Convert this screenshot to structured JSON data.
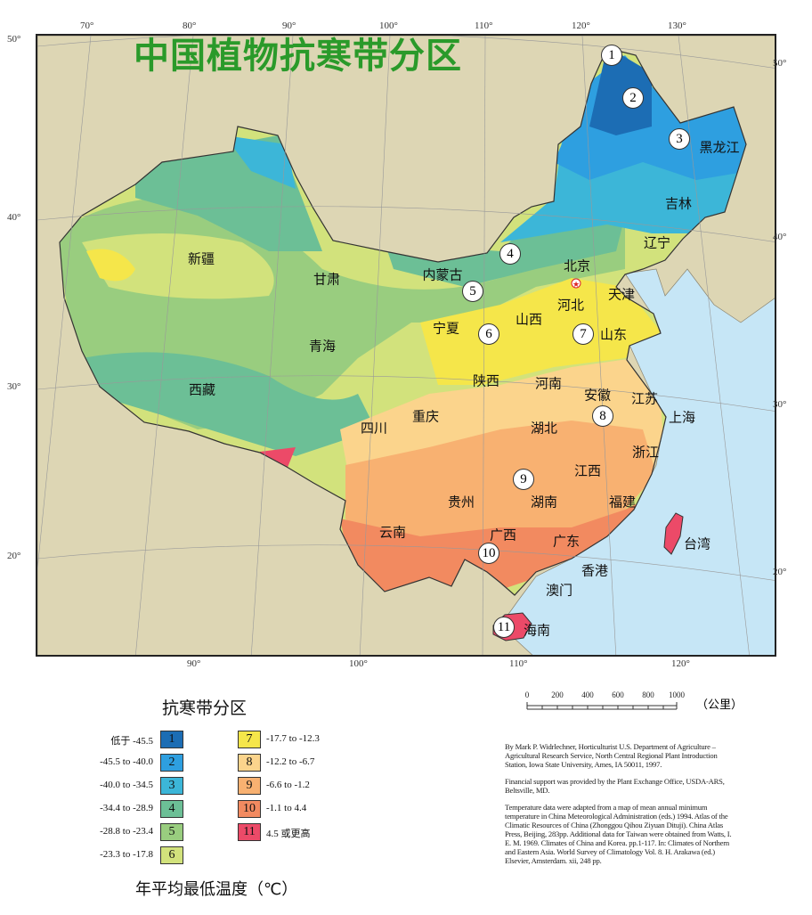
{
  "title": "中国植物抗寒带分区",
  "colors": {
    "land_outside": "#ddd6b4",
    "sea": "#c6e6f6",
    "title": "#2a9a2a",
    "zones": [
      "#1c6db4",
      "#2e9fe0",
      "#3cb6d8",
      "#6cbf96",
      "#99cd7f",
      "#d2e27c",
      "#f5e64a",
      "#fbd48c",
      "#f8b171",
      "#f28a60",
      "#ec4a68"
    ]
  },
  "axis_labels": {
    "top": [
      "70°",
      "80°",
      "90°",
      "100°",
      "110°",
      "120°",
      "130°"
    ],
    "left": [
      "50°",
      "40°",
      "30°",
      "20°"
    ],
    "right": [
      "50°",
      "40°",
      "30°",
      "20°"
    ],
    "bottom": [
      "90°",
      "100°",
      "110°",
      "120°"
    ]
  },
  "provinces": [
    "新疆",
    "甘肃",
    "内蒙古",
    "北京",
    "天津",
    "辽宁",
    "吉林",
    "黑龙江",
    "河北",
    "山西",
    "宁夏",
    "青海",
    "山东",
    "西藏",
    "陕西",
    "河南",
    "安徽",
    "江苏",
    "上海",
    "四川",
    "重庆",
    "湖北",
    "浙江",
    "江西",
    "贵州",
    "湖南",
    "福建",
    "云南",
    "广西",
    "广东",
    "台湾",
    "香港",
    "澳门",
    "海南"
  ],
  "zone_markers": [
    "1",
    "2",
    "3",
    "4",
    "5",
    "6",
    "7",
    "8",
    "9",
    "10",
    "11"
  ],
  "legend": {
    "title": "抗寒带分区",
    "unit_label": "年平均最低温度（℃）",
    "items": [
      {
        "zone": "1",
        "range": "低于  -45.5"
      },
      {
        "zone": "2",
        "range": "-45.5 to -40.0"
      },
      {
        "zone": "3",
        "range": "-40.0 to -34.5"
      },
      {
        "zone": "4",
        "range": "-34.4 to -28.9"
      },
      {
        "zone": "5",
        "range": "-28.8 to -23.4"
      },
      {
        "zone": "6",
        "range": "-23.3 to -17.8"
      },
      {
        "zone": "7",
        "range": "-17.7 to -12.3"
      },
      {
        "zone": "8",
        "range": "-12.2 to -6.7"
      },
      {
        "zone": "9",
        "range": "-6.6 to -1.2"
      },
      {
        "zone": "10",
        "range": "-1.1 to 4.4"
      },
      {
        "zone": "11",
        "range": "4.5  或更高"
      }
    ]
  },
  "scale": {
    "ticks": [
      "0",
      "200",
      "400",
      "600",
      "800",
      "1000"
    ],
    "unit": "（公里）"
  },
  "credits": [
    "By Mark P. Widrlechner, Horticulturist U.S. Department of Agriculture – Agricultural Research Service, North Central Regional Plant Introduction Station, Iowa State University, Ames, IA 50011, 1997.",
    "Financial support was provided by the Plant Exchange Office, USDA-ARS, Beltsville, MD.",
    "Temperature data were adapted from a map of mean annual minimum temperature in China Meteorological Administration (eds.) 1994. Atlas of the Climatic Resources of China (Zhonggou Qihou Ziyuan Dituji). China Atlas Press, Beijing, 283pp. Additional data for Taiwan were obtained from Watts, I. E. M. 1969. Climates of China and Korea. pp.1-117. In: Climates of Northern and Eastern Asia. World Survey of Climatology Vol. 8. H. Arakawa (ed.) Elsevier, Amsterdam. xii, 248 pp."
  ]
}
